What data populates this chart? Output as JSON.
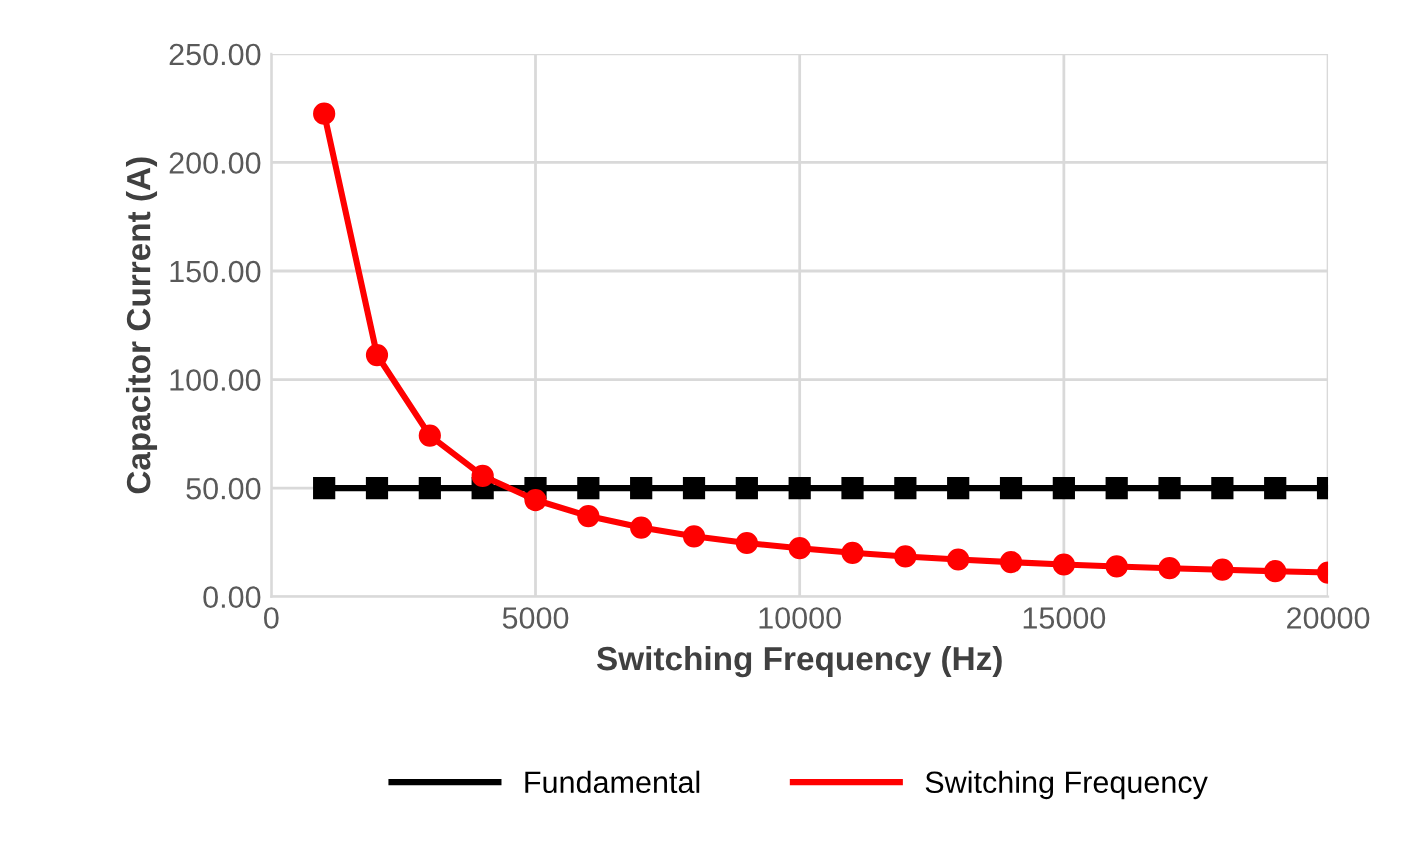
{
  "chart_data": {
    "type": "line",
    "xlabel": "Switching Frequency (Hz)",
    "ylabel": "Capacitor Current (A)",
    "x": [
      1000,
      2000,
      3000,
      4000,
      5000,
      6000,
      7000,
      8000,
      9000,
      10000,
      11000,
      12000,
      13000,
      14000,
      15000,
      16000,
      17000,
      18000,
      19000,
      20000
    ],
    "series": [
      {
        "name": "Fundamental",
        "color": "#000000",
        "marker": "square",
        "values": [
          50,
          50,
          50,
          50,
          50,
          50,
          50,
          50,
          50,
          50,
          50,
          50,
          50,
          50,
          50,
          50,
          50,
          50,
          50,
          50
        ]
      },
      {
        "name": "Switching Frequency",
        "color": "#ff0000",
        "marker": "circle",
        "values": [
          222.5,
          111.3,
          74.2,
          55.6,
          44.5,
          37.1,
          31.8,
          27.8,
          24.7,
          22.3,
          20.2,
          18.5,
          17.1,
          15.9,
          14.8,
          13.9,
          13.1,
          12.4,
          11.7,
          11.1
        ]
      }
    ],
    "xlim": [
      0,
      20000
    ],
    "xticks": [
      0,
      5000,
      10000,
      15000,
      20000
    ],
    "ylim": [
      0,
      250
    ],
    "yticks": [
      {
        "value": 0,
        "label": "0.00"
      },
      {
        "value": 50,
        "label": "50.00"
      },
      {
        "value": 100,
        "label": "100.00"
      },
      {
        "value": 150,
        "label": "150.00"
      },
      {
        "value": 200,
        "label": "200.00"
      },
      {
        "value": 250,
        "label": "250.00"
      }
    ],
    "grid": true,
    "legend": "bottom",
    "line_style": "solid"
  }
}
